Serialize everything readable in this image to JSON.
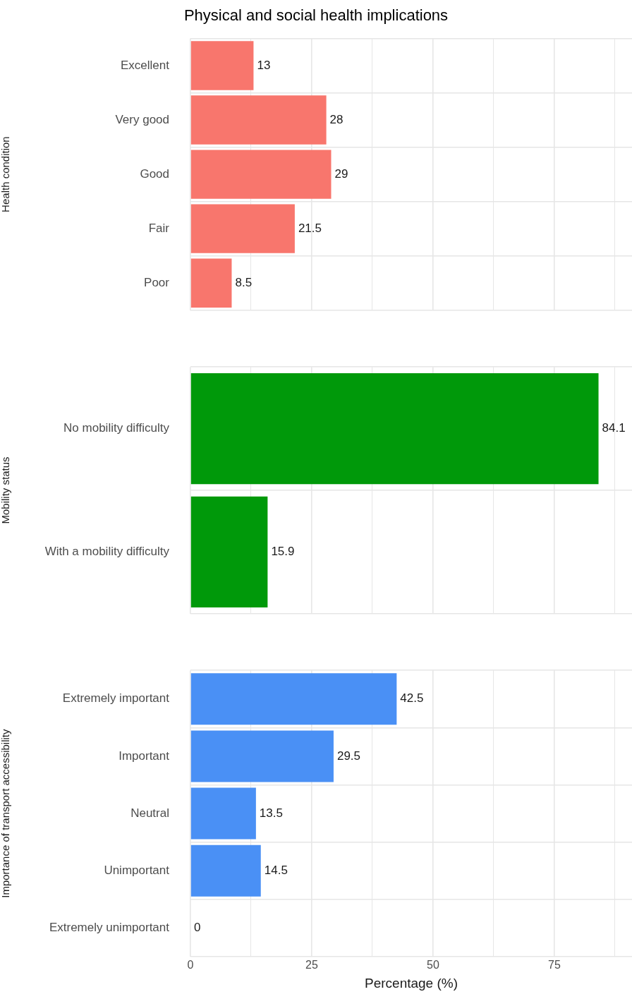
{
  "chart_data": [
    {
      "type": "bar",
      "orientation": "horizontal",
      "title": "Physical and social health implications",
      "ylabel": "Health condition",
      "categories": [
        "Excellent",
        "Very good",
        "Good",
        "Fair",
        "Poor"
      ],
      "values": [
        13,
        28,
        29,
        21.5,
        8.5
      ],
      "color": "#f8766d",
      "data_labels": true,
      "xlim": [
        0,
        91
      ],
      "xticks": [
        0,
        {
          "value": 12.5,
          "label": null
        },
        25,
        {
          "value": 37.5,
          "label": null
        },
        50,
        {
          "value": 62.5,
          "label": null
        },
        75,
        {
          "value": 87.5,
          "label": null
        }
      ],
      "tick_labels": "y",
      "grid": true,
      "legend": false
    },
    {
      "type": "bar",
      "orientation": "horizontal",
      "ylabel": "Mobility status",
      "categories": [
        "No mobility difficulty",
        "With a mobility difficulty"
      ],
      "values": [
        84.1,
        15.9
      ],
      "color": "#00990a",
      "data_labels": true,
      "xlim": [
        0,
        91
      ],
      "xticks": [
        0,
        {
          "value": 12.5,
          "label": null
        },
        25,
        {
          "value": 37.5,
          "label": null
        },
        50,
        {
          "value": 62.5,
          "label": null
        },
        75,
        {
          "value": 87.5,
          "label": null
        }
      ],
      "tick_labels": "y",
      "grid": true,
      "legend": false
    },
    {
      "type": "bar",
      "orientation": "horizontal",
      "ylabel": "Importance of transport accessibility",
      "xlabel": "Percentage (%)",
      "categories": [
        "Extremely important",
        "Important",
        "Neutral",
        "Unimportant",
        "Extremely unimportant"
      ],
      "values": [
        42.5,
        29.5,
        13.5,
        14.5,
        0
      ],
      "color": "#4a90f5",
      "data_labels": true,
      "xlim": [
        0,
        91
      ],
      "xticks": [
        0,
        {
          "value": 12.5,
          "label": null
        },
        25,
        {
          "value": 37.5,
          "label": null
        },
        50,
        {
          "value": 62.5,
          "label": null
        },
        75,
        {
          "value": 87.5,
          "label": null
        }
      ],
      "grid": true,
      "legend": false
    }
  ]
}
